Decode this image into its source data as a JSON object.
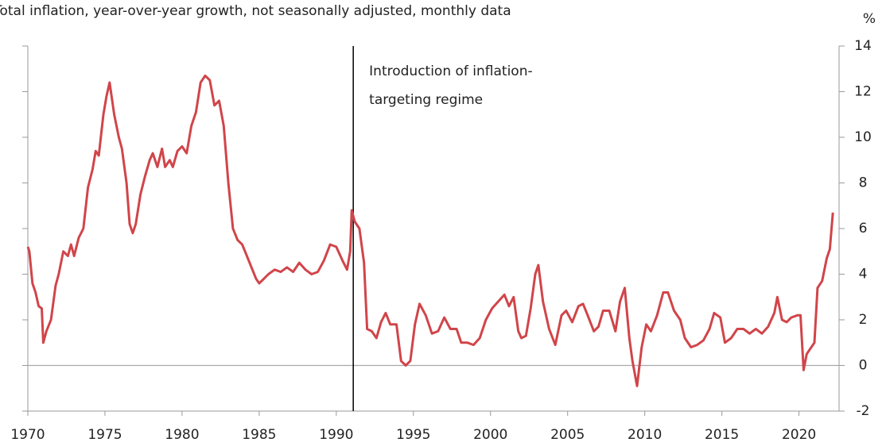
{
  "chart_data": {
    "type": "line",
    "title": "Total inflation, year-over-year growth, not seasonally adjusted, monthly data",
    "y_unit": "%",
    "annotation": [
      "Introduction of inflation-",
      "targeting regime"
    ],
    "annotation_x": 1991.1,
    "xlim": [
      1970,
      2022.6
    ],
    "ylim": [
      -2,
      14
    ],
    "xticks": [
      1970,
      1975,
      1980,
      1985,
      1990,
      1995,
      2000,
      2005,
      2010,
      2015,
      2020
    ],
    "yticks": [
      -2,
      0,
      2,
      4,
      6,
      8,
      10,
      12,
      14
    ],
    "series": [
      {
        "color": "#d0454a",
        "x": [
          1970.0,
          1970.1,
          1970.3,
          1970.5,
          1970.7,
          1970.9,
          1971.0,
          1971.2,
          1971.5,
          1971.8,
          1972.0,
          1972.3,
          1972.6,
          1972.8,
          1973.0,
          1973.3,
          1973.6,
          1973.9,
          1974.2,
          1974.4,
          1974.6,
          1974.9,
          1975.1,
          1975.3,
          1975.6,
          1975.9,
          1976.1,
          1976.4,
          1976.6,
          1976.8,
          1977.0,
          1977.3,
          1977.6,
          1977.9,
          1978.1,
          1978.4,
          1978.7,
          1978.9,
          1979.2,
          1979.4,
          1979.7,
          1980.0,
          1980.3,
          1980.6,
          1980.9,
          1981.2,
          1981.5,
          1981.8,
          1982.1,
          1982.4,
          1982.7,
          1983.0,
          1983.3,
          1983.6,
          1983.9,
          1984.2,
          1984.5,
          1984.8,
          1985.0,
          1985.3,
          1985.6,
          1986.0,
          1986.4,
          1986.8,
          1987.2,
          1987.6,
          1988.0,
          1988.4,
          1988.8,
          1989.2,
          1989.6,
          1990.0,
          1990.4,
          1990.7,
          1990.9,
          1991.0,
          1991.2,
          1991.5,
          1991.8,
          1992.0,
          1992.3,
          1992.6,
          1992.9,
          1993.2,
          1993.5,
          1993.9,
          1994.2,
          1994.5,
          1994.8,
          1995.1,
          1995.4,
          1995.8,
          1996.2,
          1996.6,
          1997.0,
          1997.4,
          1997.8,
          1998.1,
          1998.5,
          1998.9,
          1999.3,
          1999.7,
          2000.1,
          2000.5,
          2000.9,
          2001.2,
          2001.5,
          2001.8,
          2002.0,
          2002.3,
          2002.6,
          2002.9,
          2003.1,
          2003.4,
          2003.8,
          2004.2,
          2004.6,
          2004.9,
          2005.3,
          2005.7,
          2006.0,
          2006.3,
          2006.7,
          2007.0,
          2007.3,
          2007.7,
          2008.1,
          2008.4,
          2008.7,
          2009.0,
          2009.2,
          2009.5,
          2009.8,
          2010.1,
          2010.4,
          2010.8,
          2011.2,
          2011.5,
          2011.9,
          2012.3,
          2012.6,
          2013.0,
          2013.4,
          2013.8,
          2014.2,
          2014.5,
          2014.9,
          2015.2,
          2015.6,
          2016.0,
          2016.4,
          2016.8,
          2017.2,
          2017.6,
          2018.0,
          2018.4,
          2018.6,
          2018.9,
          2019.2,
          2019.5,
          2019.9,
          2020.1,
          2020.3,
          2020.5,
          2020.8,
          2021.0,
          2021.2,
          2021.5,
          2021.8,
          2022.0,
          2022.2
        ],
        "values": [
          5.2,
          5.0,
          3.6,
          3.2,
          2.6,
          2.5,
          1.0,
          1.5,
          2.0,
          3.5,
          4.0,
          5.0,
          4.8,
          5.3,
          4.8,
          5.6,
          6.0,
          7.8,
          8.6,
          9.4,
          9.2,
          11.0,
          11.8,
          12.4,
          11.0,
          10.0,
          9.5,
          8.0,
          6.2,
          5.8,
          6.2,
          7.5,
          8.3,
          9.0,
          9.3,
          8.7,
          9.5,
          8.7,
          9.0,
          8.7,
          9.4,
          9.6,
          9.3,
          10.5,
          11.1,
          12.4,
          12.7,
          12.5,
          11.4,
          11.6,
          10.5,
          8.0,
          6.0,
          5.5,
          5.3,
          4.8,
          4.3,
          3.8,
          3.6,
          3.8,
          4.0,
          4.2,
          4.1,
          4.3,
          4.1,
          4.5,
          4.2,
          4.0,
          4.1,
          4.6,
          5.3,
          5.2,
          4.6,
          4.2,
          5.0,
          6.8,
          6.3,
          6.0,
          4.5,
          1.6,
          1.5,
          1.2,
          1.9,
          2.3,
          1.8,
          1.8,
          0.2,
          0.0,
          0.2,
          1.8,
          2.7,
          2.2,
          1.4,
          1.5,
          2.1,
          1.6,
          1.6,
          1.0,
          1.0,
          0.9,
          1.2,
          2.0,
          2.5,
          2.8,
          3.1,
          2.6,
          3.0,
          1.5,
          1.2,
          1.3,
          2.5,
          4.0,
          4.4,
          2.8,
          1.6,
          0.9,
          2.2,
          2.4,
          1.9,
          2.6,
          2.7,
          2.2,
          1.5,
          1.7,
          2.4,
          2.4,
          1.5,
          2.8,
          3.4,
          1.2,
          0.2,
          -0.9,
          0.8,
          1.8,
          1.5,
          2.2,
          3.2,
          3.2,
          2.4,
          2.0,
          1.2,
          0.8,
          0.9,
          1.1,
          1.6,
          2.3,
          2.1,
          1.0,
          1.2,
          1.6,
          1.6,
          1.4,
          1.6,
          1.4,
          1.7,
          2.3,
          3.0,
          2.0,
          1.9,
          2.1,
          2.2,
          2.2,
          -0.2,
          0.5,
          0.8,
          1.0,
          3.4,
          3.7,
          4.7,
          5.1,
          6.7
        ]
      }
    ]
  }
}
